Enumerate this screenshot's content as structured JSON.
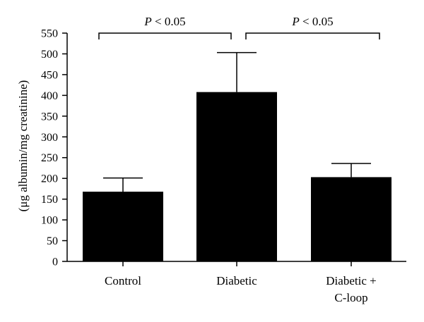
{
  "chart_data": {
    "type": "bar",
    "categories": [
      "Control",
      "Diabetic",
      "Diabetic +|C-loop"
    ],
    "values": [
      168,
      408,
      203
    ],
    "errors": [
      33,
      95,
      33
    ],
    "ylabel": "(μg albumin/mg creatinine)",
    "xlabel": "",
    "ylim": [
      0,
      550
    ],
    "yticks": [
      0,
      50,
      100,
      150,
      200,
      250,
      300,
      350,
      400,
      450,
      500,
      550
    ],
    "bar_color": "#000000",
    "grid": false,
    "annotations": [
      {
        "text": "P < 0.05",
        "from": 0,
        "to": 1
      },
      {
        "text": "P < 0.05",
        "from": 1,
        "to": 2
      }
    ]
  }
}
